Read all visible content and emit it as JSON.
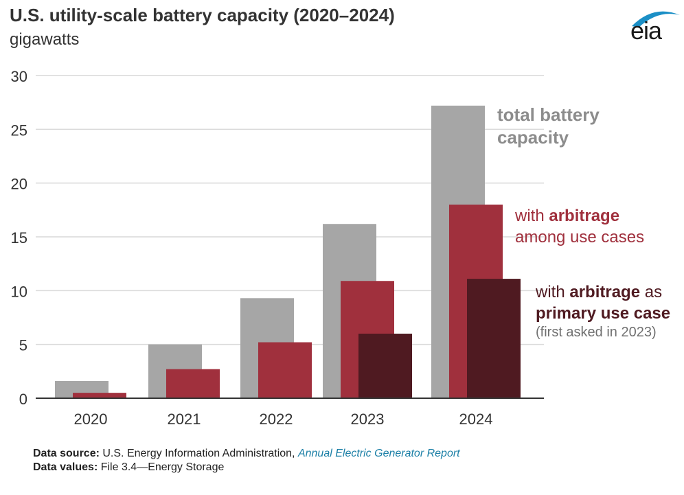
{
  "header": {
    "title": "U.S. utility-scale battery capacity (2020–2024)",
    "subtitle": "gigawatts",
    "logo_text": "eia"
  },
  "annotations": {
    "total_line1": "total battery",
    "total_line2": "capacity",
    "arb_prefix": "with ",
    "arb_bold": "arbitrage",
    "arb_line2": "among use cases",
    "primary_prefix": "with ",
    "primary_bold": "arbitrage",
    "primary_suffix": " as",
    "primary_line2": "primary use case",
    "primary_note": "(first asked in 2023)"
  },
  "footer": {
    "source_label": "Data source:",
    "source_text": "U.S. Energy Information Administration, ",
    "source_link": "Annual Electric Generator Report",
    "values_label": "Data values:",
    "values_text": "File 3.4—Energy Storage"
  },
  "colors": {
    "total": "#a6a6a6",
    "arbitrage": "#a0303d",
    "primary": "#4f1a21",
    "grid": "#d9d9d9",
    "axis": "#333333"
  },
  "chart_data": {
    "type": "bar",
    "categories": [
      "2020",
      "2021",
      "2022",
      "2023",
      "2024"
    ],
    "series": [
      {
        "name": "total battery capacity",
        "values": [
          1.6,
          5.0,
          9.3,
          16.2,
          27.2
        ]
      },
      {
        "name": "with arbitrage among use cases",
        "values": [
          0.5,
          2.7,
          5.2,
          10.9,
          18.0
        ]
      },
      {
        "name": "with arbitrage as primary use case (first asked in 2023)",
        "values": [
          null,
          null,
          null,
          6.0,
          11.1
        ]
      }
    ],
    "yticks": [
      0,
      5,
      10,
      15,
      20,
      25,
      30
    ],
    "ylim": [
      0,
      30
    ],
    "grid": true
  }
}
